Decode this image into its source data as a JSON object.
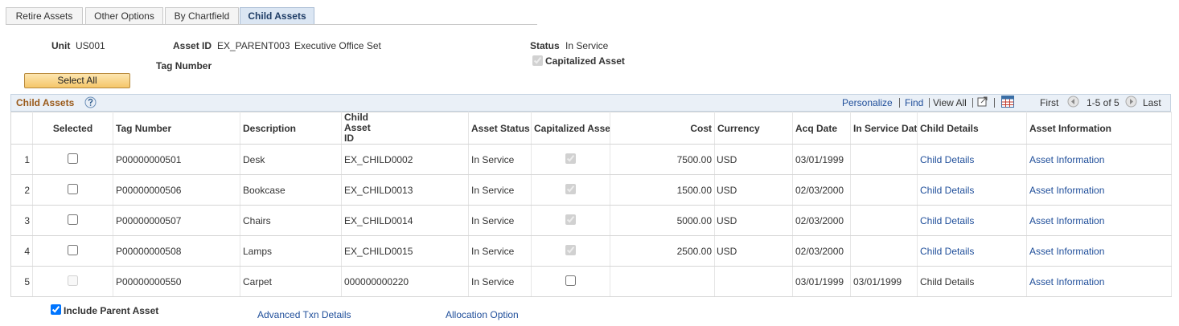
{
  "tabs": [
    "Retire Assets",
    "Other Options",
    "By Chartfield",
    "Child Assets"
  ],
  "active_tab": 3,
  "header": {
    "unit_label": "Unit",
    "unit": "US001",
    "asset_id_label": "Asset ID",
    "asset_id": "EX_PARENT003",
    "asset_description": "Executive Office Set",
    "tag_number_label": "Tag Number",
    "status_label": "Status",
    "status": "In Service",
    "capitalized_label": "Capitalized Asset",
    "capitalized": true
  },
  "select_all": "Select All",
  "grid": {
    "title": "Child Assets",
    "toolbar": {
      "personalize": "Personalize",
      "find": "Find",
      "view_all": "View All",
      "first": "First",
      "range": "1-5 of 5",
      "last": "Last"
    },
    "columns": [
      "Selected",
      "Tag Number",
      "Description",
      "Child Asset ID",
      "Asset Status",
      "Capitalized Asset",
      "Cost",
      "Currency",
      "Acq Date",
      "In Service Date",
      "Child Details",
      "Asset Information"
    ],
    "rows": [
      {
        "number": 1,
        "selected_enabled": true,
        "tag": "P00000000501",
        "description": "Desk",
        "child_id": "EX_CHILD0002",
        "status": "In Service",
        "capitalized": true,
        "capitalized_enabled": false,
        "cost": "7500.00",
        "currency": "USD",
        "acq_date": "03/01/1999",
        "in_service_date": null,
        "child_details": "Child Details",
        "child_details_link": true,
        "asset_information": "Asset Information"
      },
      {
        "number": 2,
        "selected_enabled": true,
        "tag": "P00000000506",
        "description": "Bookcase",
        "child_id": "EX_CHILD0013",
        "status": "In Service",
        "capitalized": true,
        "capitalized_enabled": false,
        "cost": "1500.00",
        "currency": "USD",
        "acq_date": "02/03/2000",
        "in_service_date": null,
        "child_details": "Child Details",
        "child_details_link": true,
        "asset_information": "Asset Information"
      },
      {
        "number": 3,
        "selected_enabled": true,
        "tag": "P00000000507",
        "description": "Chairs",
        "child_id": "EX_CHILD0014",
        "status": "In Service",
        "capitalized": true,
        "capitalized_enabled": false,
        "cost": "5000.00",
        "currency": "USD",
        "acq_date": "02/03/2000",
        "in_service_date": null,
        "child_details": "Child Details",
        "child_details_link": true,
        "asset_information": "Asset Information"
      },
      {
        "number": 4,
        "selected_enabled": true,
        "tag": "P00000000508",
        "description": "Lamps",
        "child_id": "EX_CHILD0015",
        "status": "In Service",
        "capitalized": true,
        "capitalized_enabled": false,
        "cost": "2500.00",
        "currency": "USD",
        "acq_date": "02/03/2000",
        "in_service_date": null,
        "child_details": "Child Details",
        "child_details_link": true,
        "asset_information": "Asset Information"
      },
      {
        "number": 5,
        "selected_enabled": false,
        "tag": "P00000000550",
        "description": "Carpet",
        "child_id": "000000000220",
        "status": "In Service",
        "capitalized": false,
        "capitalized_enabled": true,
        "cost": null,
        "currency": null,
        "acq_date": "03/01/1999",
        "in_service_date": "03/01/1999",
        "child_details": "Child Details",
        "child_details_link": false,
        "asset_information": "Asset Information"
      }
    ]
  },
  "footer": {
    "include_parent_label": "Include Parent Asset",
    "include_parent": true,
    "advanced_txn": "Advanced Txn Details",
    "allocation": "Allocation Option"
  }
}
